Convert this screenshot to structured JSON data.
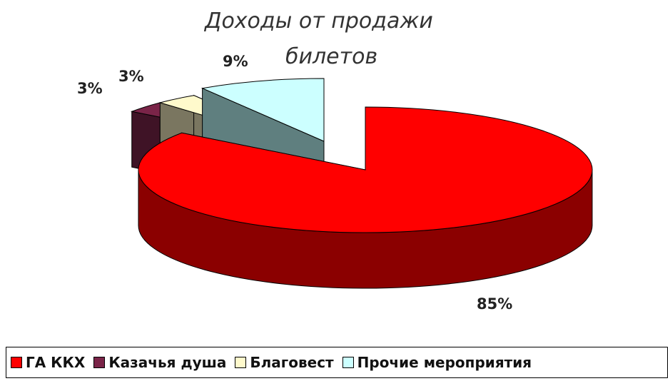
{
  "chart_data": {
    "type": "pie",
    "title_lines": [
      "Доходы от продажи",
      "билетов"
    ],
    "categories": [
      "ГА ККХ",
      "Казачья душа",
      "Благовест",
      "Прочие мероприятия"
    ],
    "values": [
      85,
      3,
      3,
      9
    ],
    "labels": [
      "85%",
      "3%",
      "3%",
      "9%"
    ],
    "colors": [
      "#ff0000",
      "#7a2448",
      "#fffacc",
      "#ccffff"
    ],
    "side_colors": [
      "#8b0000",
      "#3f1326",
      "#7a7660",
      "#5f7f7f"
    ],
    "legend_position": "bottom",
    "style": "3d-exploded"
  }
}
